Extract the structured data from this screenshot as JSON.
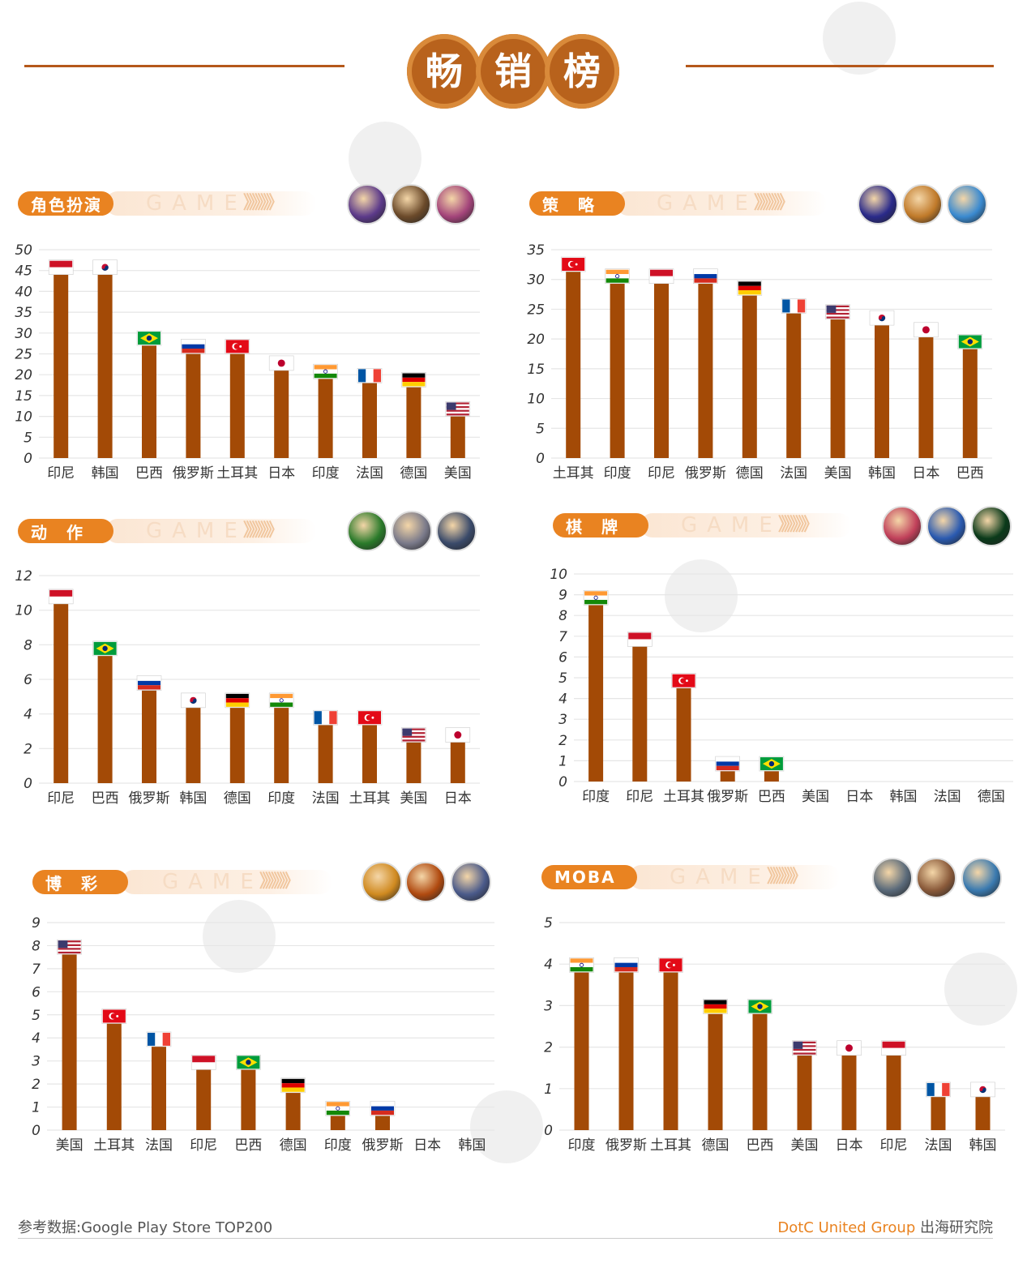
{
  "header": {
    "title_chars": [
      "畅",
      "销",
      "榜"
    ]
  },
  "game_word": "GAME",
  "panels": [
    {
      "category": "角色扮演",
      "icons": [
        "hero-avatar-icon",
        "warrior-avatar-icon",
        "anime-girl-avatar-icon"
      ],
      "chart_data": {
        "type": "bar",
        "categories": [
          "印尼",
          "韩国",
          "巴西",
          "俄罗斯",
          "土耳其",
          "日本",
          "印度",
          "法国",
          "德国",
          "美国"
        ],
        "values": [
          45,
          45,
          28,
          26,
          26,
          22,
          20,
          19,
          18,
          11
        ],
        "flags": [
          "ID",
          "KR",
          "BR",
          "RU",
          "TR",
          "JP",
          "IN",
          "FR",
          "DE",
          "US"
        ],
        "ylim": [
          0,
          50
        ],
        "yticks": [
          0,
          5,
          10,
          15,
          20,
          25,
          30,
          35,
          40,
          45,
          50
        ],
        "grid": true
      }
    },
    {
      "category": "策　略",
      "icons": [
        "wolf-eye-avatar-icon",
        "viking-avatar-icon",
        "king-avatar-icon"
      ],
      "chart_data": {
        "type": "bar",
        "categories": [
          "土耳其",
          "印度",
          "印尼",
          "俄罗斯",
          "德国",
          "法国",
          "美国",
          "韩国",
          "日本",
          "巴西"
        ],
        "values": [
          32,
          30,
          30,
          30,
          28,
          25,
          24,
          23,
          21,
          19
        ],
        "flags": [
          "TR",
          "IN",
          "ID",
          "RU",
          "DE",
          "FR",
          "US",
          "KR",
          "JP",
          "BR"
        ],
        "ylim": [
          0,
          35
        ],
        "yticks": [
          0,
          5,
          10,
          15,
          20,
          25,
          30,
          35
        ],
        "grid": true
      }
    },
    {
      "category": "动　作",
      "icons": [
        "archer-avatar-icon",
        "knight-avatar-icon",
        "soldier-avatar-icon"
      ],
      "chart_data": {
        "type": "bar",
        "categories": [
          "印尼",
          "巴西",
          "俄罗斯",
          "韩国",
          "德国",
          "印度",
          "法国",
          "土耳其",
          "美国",
          "日本"
        ],
        "values": [
          10.6,
          7.6,
          5.6,
          4.6,
          4.6,
          4.6,
          3.6,
          3.6,
          2.6,
          2.6
        ],
        "flags": [
          "ID",
          "BR",
          "RU",
          "KR",
          "DE",
          "IN",
          "FR",
          "TR",
          "US",
          "JP"
        ],
        "ylim": [
          0,
          12
        ],
        "yticks": [
          0,
          2,
          4,
          6,
          8,
          10,
          12
        ],
        "grid": true
      }
    },
    {
      "category": "棋　牌",
      "icons": [
        "domino-avatar-icon",
        "okey-avatar-icon",
        "poker-avatar-icon"
      ],
      "chart_data": {
        "type": "bar",
        "categories": [
          "印度",
          "印尼",
          "土耳其",
          "俄罗斯",
          "巴西",
          "美国",
          "日本",
          "韩国",
          "法国",
          "德国"
        ],
        "values": [
          8.7,
          6.7,
          4.7,
          0.7,
          0.7,
          0,
          0,
          0,
          0,
          0
        ],
        "flags": [
          "IN",
          "ID",
          "TR",
          "RU",
          "BR",
          "",
          "",
          "",
          "",
          ""
        ],
        "ylim": [
          0,
          10
        ],
        "yticks": [
          0,
          1,
          2,
          3,
          4,
          5,
          6,
          7,
          8,
          9,
          10
        ],
        "grid": true
      }
    },
    {
      "category": "博　彩",
      "icons": [
        "slots-avatar-icon",
        "volcano-slots-avatar-icon",
        "zeus-slots-avatar-icon"
      ],
      "chart_data": {
        "type": "bar",
        "categories": [
          "美国",
          "土耳其",
          "法国",
          "印尼",
          "巴西",
          "德国",
          "印度",
          "俄罗斯",
          "日本",
          "韩国"
        ],
        "values": [
          7.8,
          4.8,
          3.8,
          2.8,
          2.8,
          1.8,
          0.8,
          0.8,
          0,
          0
        ],
        "flags": [
          "US",
          "TR",
          "FR",
          "ID",
          "BR",
          "DE",
          "IN",
          "RU",
          "",
          ""
        ],
        "ylim": [
          0,
          9
        ],
        "yticks": [
          0,
          1,
          2,
          3,
          4,
          5,
          6,
          7,
          8,
          9
        ],
        "grid": true
      }
    },
    {
      "category": "MOBA",
      "icons": [
        "pubg-avatar-icon",
        "shooter-avatar-icon",
        "mage-avatar-icon"
      ],
      "chart_data": {
        "type": "bar",
        "categories": [
          "印度",
          "俄罗斯",
          "土耳其",
          "德国",
          "巴西",
          "美国",
          "日本",
          "印尼",
          "法国",
          "韩国"
        ],
        "values": [
          3.9,
          3.9,
          3.9,
          2.9,
          2.9,
          1.9,
          1.9,
          1.9,
          0.9,
          0.9
        ],
        "flags": [
          "IN",
          "RU",
          "TR",
          "DE",
          "BR",
          "US",
          "JP",
          "ID",
          "FR",
          "KR"
        ],
        "ylim": [
          0,
          5
        ],
        "yticks": [
          0,
          1,
          2,
          3,
          4,
          5
        ],
        "grid": true
      }
    }
  ],
  "footer": {
    "source": "参考数据:Google Play Store TOP200",
    "brand": "DotC United Group",
    "institute": " 出海研究院"
  },
  "colors": {
    "bar": "#a34a06",
    "accent": "#e98321",
    "title_circle": "#b8621c",
    "grid": "#e6e6e6"
  }
}
